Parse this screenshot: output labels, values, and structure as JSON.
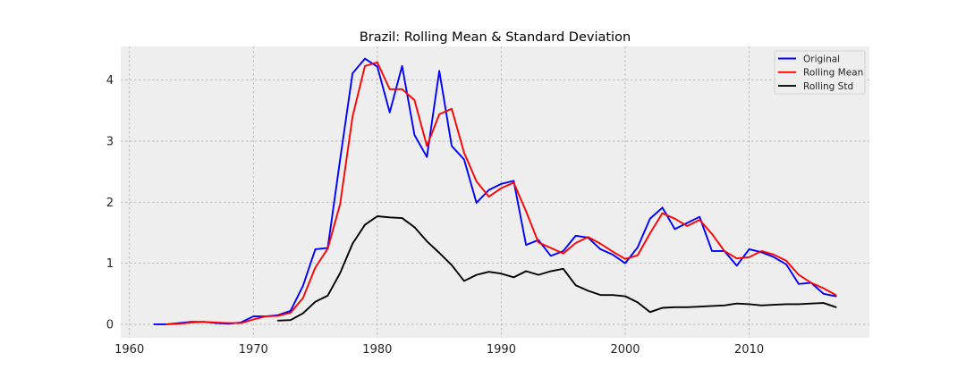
{
  "chart_data": {
    "type": "line",
    "title": "Brazil: Rolling Mean & Standard Deviation",
    "xlabel": "",
    "ylabel": "",
    "xlim": [
      1959.3,
      2019.7
    ],
    "ylim": [
      -0.22,
      4.55
    ],
    "xticks": [
      1960,
      1970,
      1980,
      1990,
      2000,
      2010
    ],
    "yticks": [
      0,
      1,
      2,
      3,
      4
    ],
    "grid": true,
    "legend_position": "top-right",
    "series": [
      {
        "name": "Original",
        "color": "#0000ff",
        "x": [
          1962,
          1963,
          1964,
          1965,
          1966,
          1967,
          1968,
          1969,
          1970,
          1971,
          1972,
          1973,
          1974,
          1975,
          1976,
          1977,
          1978,
          1979,
          1980,
          1981,
          1982,
          1983,
          1984,
          1985,
          1986,
          1987,
          1988,
          1989,
          1990,
          1991,
          1992,
          1993,
          1994,
          1995,
          1996,
          1997,
          1998,
          1999,
          2000,
          2001,
          2002,
          2003,
          2004,
          2005,
          2006,
          2007,
          2008,
          2009,
          2010,
          2011,
          2012,
          2013,
          2014,
          2015,
          2016,
          2017
        ],
        "y": [
          0.0,
          0.0,
          0.02,
          0.04,
          0.04,
          0.02,
          0.01,
          0.03,
          0.13,
          0.13,
          0.15,
          0.22,
          0.63,
          1.23,
          1.25,
          2.7,
          4.11,
          4.35,
          4.22,
          3.47,
          4.23,
          3.1,
          2.74,
          4.15,
          2.92,
          2.7,
          1.99,
          2.2,
          2.3,
          2.35,
          1.3,
          1.38,
          1.12,
          1.2,
          1.45,
          1.42,
          1.23,
          1.14,
          1.0,
          1.26,
          1.73,
          1.91,
          1.56,
          1.66,
          1.76,
          1.2,
          1.2,
          0.96,
          1.23,
          1.18,
          1.1,
          0.98,
          0.66,
          0.68,
          0.5,
          0.46
        ]
      },
      {
        "name": "Rolling Mean",
        "color": "#ff0000",
        "x": [
          1963,
          1964,
          1965,
          1966,
          1967,
          1968,
          1969,
          1970,
          1971,
          1972,
          1973,
          1974,
          1975,
          1976,
          1977,
          1978,
          1979,
          1980,
          1981,
          1982,
          1983,
          1984,
          1985,
          1986,
          1987,
          1988,
          1989,
          1990,
          1991,
          1992,
          1993,
          1994,
          1995,
          1996,
          1997,
          1998,
          1999,
          2000,
          2001,
          2002,
          2003,
          2004,
          2005,
          2006,
          2007,
          2008,
          2009,
          2010,
          2011,
          2012,
          2013,
          2014,
          2015,
          2016,
          2017
        ],
        "y": [
          0.0,
          0.01,
          0.03,
          0.04,
          0.03,
          0.02,
          0.02,
          0.08,
          0.13,
          0.14,
          0.19,
          0.43,
          0.93,
          1.24,
          1.97,
          3.4,
          4.23,
          4.29,
          3.85,
          3.85,
          3.67,
          2.92,
          3.44,
          3.53,
          2.81,
          2.34,
          2.09,
          2.23,
          2.32,
          1.85,
          1.34,
          1.25,
          1.16,
          1.33,
          1.43,
          1.32,
          1.19,
          1.07,
          1.13,
          1.49,
          1.82,
          1.73,
          1.61,
          1.71,
          1.48,
          1.2,
          1.08,
          1.1,
          1.2,
          1.14,
          1.04,
          0.81,
          0.68,
          0.59,
          0.48
        ]
      },
      {
        "name": "Rolling Std",
        "color": "#000000",
        "x": [
          1972,
          1973,
          1974,
          1975,
          1976,
          1977,
          1978,
          1979,
          1980,
          1981,
          1982,
          1983,
          1984,
          1985,
          1986,
          1987,
          1988,
          1989,
          1990,
          1991,
          1992,
          1993,
          1994,
          1995,
          1996,
          1997,
          1998,
          1999,
          2000,
          2001,
          2002,
          2003,
          2004,
          2005,
          2006,
          2007,
          2008,
          2009,
          2010,
          2011,
          2012,
          2013,
          2014,
          2015,
          2016,
          2017
        ],
        "y": [
          0.06,
          0.07,
          0.18,
          0.37,
          0.47,
          0.84,
          1.32,
          1.63,
          1.77,
          1.75,
          1.74,
          1.59,
          1.36,
          1.17,
          0.97,
          0.71,
          0.81,
          0.86,
          0.83,
          0.77,
          0.87,
          0.81,
          0.87,
          0.91,
          0.64,
          0.55,
          0.48,
          0.48,
          0.46,
          0.36,
          0.2,
          0.27,
          0.28,
          0.28,
          0.29,
          0.3,
          0.31,
          0.34,
          0.33,
          0.31,
          0.32,
          0.33,
          0.33,
          0.34,
          0.35,
          0.28
        ]
      }
    ]
  }
}
